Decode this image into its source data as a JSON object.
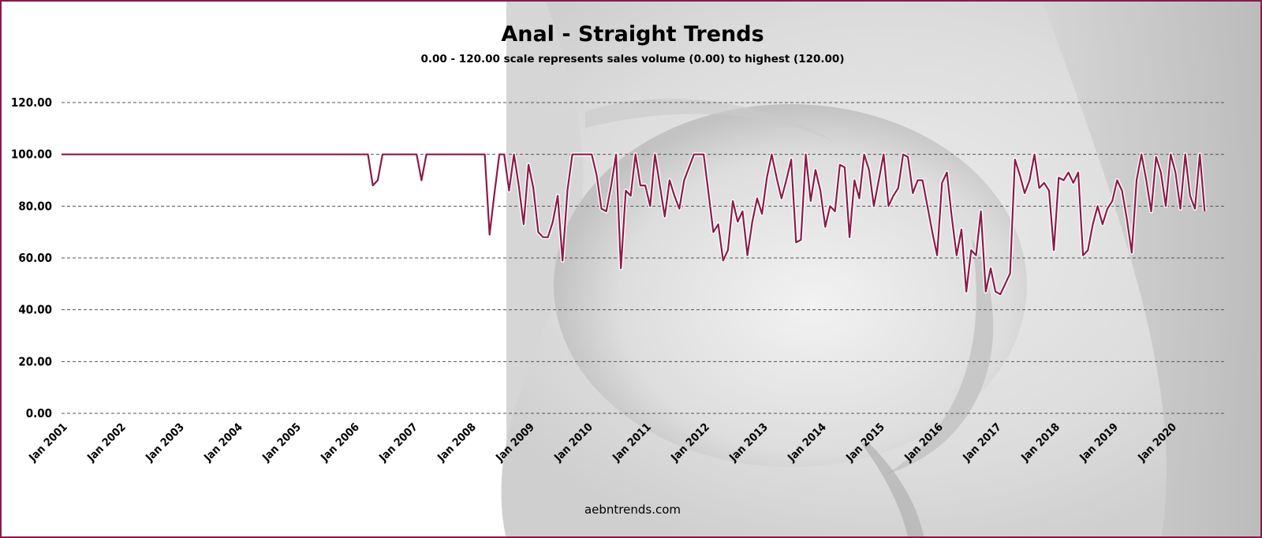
{
  "footer": "aebntrends.com",
  "colors": {
    "line": "#8b1a4a",
    "frame": "#8b1a4a",
    "grid": "#555555"
  },
  "background_image": "grayscale-torso-photo",
  "chart_data": {
    "type": "line",
    "title": "Anal - Straight Trends",
    "subtitle": "0.00 - 120.00 scale represents sales volume (0.00) to highest (120.00)",
    "xlabel": "",
    "ylabel": "",
    "ylim": [
      0,
      120
    ],
    "yticks": [
      "0.00",
      "20.00",
      "40.00",
      "60.00",
      "80.00",
      "100.00",
      "120.00"
    ],
    "xticks": [
      "Jan 2001",
      "Jan 2002",
      "Jan 2003",
      "Jan 2004",
      "Jan 2005",
      "Jan 2006",
      "Jan 2007",
      "Jan 2008",
      "Jan 2009",
      "Jan 2010",
      "Jan 2011",
      "Jan 2012",
      "Jan 2013",
      "Jan 2014",
      "Jan 2015",
      "Jan 2016",
      "Jan 2017",
      "Jan 2018",
      "Jan 2019",
      "Jan 2020"
    ],
    "xrange": [
      "2001-01",
      "2020-12"
    ],
    "grid": true,
    "legend": "none",
    "series": [
      {
        "points": [
          [
            "2001-01",
            100
          ],
          [
            "2006-04",
            100
          ],
          [
            "2006-05",
            88
          ],
          [
            "2006-06",
            90
          ],
          [
            "2006-07",
            100
          ],
          [
            "2007-02",
            100
          ],
          [
            "2007-03",
            90
          ],
          [
            "2007-04",
            100
          ],
          [
            "2008-04",
            100
          ],
          [
            "2008-05",
            69
          ],
          [
            "2008-06",
            85
          ],
          [
            "2008-07",
            100
          ],
          [
            "2008-08",
            100
          ],
          [
            "2008-09",
            86
          ],
          [
            "2008-10",
            100
          ],
          [
            "2008-11",
            88
          ],
          [
            "2008-12",
            73
          ],
          [
            "2009-01",
            96
          ],
          [
            "2009-02",
            87
          ],
          [
            "2009-03",
            70
          ],
          [
            "2009-04",
            68
          ],
          [
            "2009-05",
            68
          ],
          [
            "2009-06",
            74
          ],
          [
            "2009-07",
            84
          ],
          [
            "2009-08",
            59
          ],
          [
            "2009-09",
            86
          ],
          [
            "2009-10",
            100
          ],
          [
            "2009-11",
            100
          ],
          [
            "2010-02",
            100
          ],
          [
            "2010-03",
            92
          ],
          [
            "2010-04",
            79
          ],
          [
            "2010-05",
            78
          ],
          [
            "2010-06",
            88
          ],
          [
            "2010-07",
            100
          ],
          [
            "2010-08",
            56
          ],
          [
            "2010-09",
            86
          ],
          [
            "2010-10",
            84
          ],
          [
            "2010-11",
            100
          ],
          [
            "2010-12",
            88
          ],
          [
            "2011-01",
            88
          ],
          [
            "2011-02",
            80
          ],
          [
            "2011-03",
            100
          ],
          [
            "2011-04",
            88
          ],
          [
            "2011-05",
            76
          ],
          [
            "2011-06",
            90
          ],
          [
            "2011-07",
            84
          ],
          [
            "2011-08",
            79
          ],
          [
            "2011-09",
            90
          ],
          [
            "2011-10",
            95
          ],
          [
            "2011-11",
            100
          ],
          [
            "2012-01",
            100
          ],
          [
            "2012-02",
            85
          ],
          [
            "2012-03",
            70
          ],
          [
            "2012-04",
            73
          ],
          [
            "2012-05",
            59
          ],
          [
            "2012-06",
            63
          ],
          [
            "2012-07",
            82
          ],
          [
            "2012-08",
            74
          ],
          [
            "2012-09",
            78
          ],
          [
            "2012-10",
            61
          ],
          [
            "2012-11",
            74
          ],
          [
            "2012-12",
            83
          ],
          [
            "2013-01",
            77
          ],
          [
            "2013-02",
            91
          ],
          [
            "2013-03",
            100
          ],
          [
            "2013-04",
            91
          ],
          [
            "2013-05",
            83
          ],
          [
            "2013-06",
            90
          ],
          [
            "2013-07",
            98
          ],
          [
            "2013-08",
            66
          ],
          [
            "2013-09",
            67
          ],
          [
            "2013-10",
            100
          ],
          [
            "2013-11",
            82
          ],
          [
            "2013-12",
            94
          ],
          [
            "2014-01",
            86
          ],
          [
            "2014-02",
            72
          ],
          [
            "2014-03",
            80
          ],
          [
            "2014-04",
            78
          ],
          [
            "2014-05",
            96
          ],
          [
            "2014-06",
            95
          ],
          [
            "2014-07",
            68
          ],
          [
            "2014-08",
            90
          ],
          [
            "2014-09",
            83
          ],
          [
            "2014-10",
            100
          ],
          [
            "2014-11",
            94
          ],
          [
            "2014-12",
            80
          ],
          [
            "2015-01",
            90
          ],
          [
            "2015-02",
            100
          ],
          [
            "2015-03",
            80
          ],
          [
            "2015-04",
            84
          ],
          [
            "2015-05",
            87
          ],
          [
            "2015-06",
            100
          ],
          [
            "2015-07",
            99
          ],
          [
            "2015-08",
            85
          ],
          [
            "2015-09",
            90
          ],
          [
            "2015-10",
            90
          ],
          [
            "2015-11",
            80
          ],
          [
            "2015-12",
            70
          ],
          [
            "2016-01",
            61
          ],
          [
            "2016-02",
            89
          ],
          [
            "2016-03",
            93
          ],
          [
            "2016-04",
            76
          ],
          [
            "2016-05",
            61
          ],
          [
            "2016-06",
            71
          ],
          [
            "2016-07",
            47
          ],
          [
            "2016-08",
            63
          ],
          [
            "2016-09",
            61
          ],
          [
            "2016-10",
            78
          ],
          [
            "2016-11",
            47
          ],
          [
            "2016-12",
            56
          ],
          [
            "2017-01",
            47
          ],
          [
            "2017-02",
            46
          ],
          [
            "2017-03",
            50
          ],
          [
            "2017-04",
            54
          ],
          [
            "2017-05",
            98
          ],
          [
            "2017-06",
            92
          ],
          [
            "2017-07",
            85
          ],
          [
            "2017-08",
            90
          ],
          [
            "2017-09",
            100
          ],
          [
            "2017-10",
            87
          ],
          [
            "2017-11",
            89
          ],
          [
            "2017-12",
            86
          ],
          [
            "2018-01",
            63
          ],
          [
            "2018-02",
            91
          ],
          [
            "2018-03",
            90
          ],
          [
            "2018-04",
            93
          ],
          [
            "2018-05",
            89
          ],
          [
            "2018-06",
            93
          ],
          [
            "2018-07",
            61
          ],
          [
            "2018-08",
            63
          ],
          [
            "2018-09",
            73
          ],
          [
            "2018-10",
            80
          ],
          [
            "2018-11",
            73
          ],
          [
            "2018-12",
            79
          ],
          [
            "2019-01",
            82
          ],
          [
            "2019-02",
            90
          ],
          [
            "2019-03",
            86
          ],
          [
            "2019-04",
            75
          ],
          [
            "2019-05",
            62
          ],
          [
            "2019-06",
            90
          ],
          [
            "2019-07",
            100
          ],
          [
            "2019-08",
            90
          ],
          [
            "2019-09",
            78
          ],
          [
            "2019-10",
            99
          ],
          [
            "2019-11",
            93
          ],
          [
            "2019-12",
            80
          ],
          [
            "2020-01",
            100
          ],
          [
            "2020-02",
            93
          ],
          [
            "2020-03",
            79
          ],
          [
            "2020-04",
            100
          ],
          [
            "2020-05",
            84
          ],
          [
            "2020-06",
            79
          ],
          [
            "2020-07",
            100
          ],
          [
            "2020-08",
            78
          ]
        ]
      }
    ]
  }
}
